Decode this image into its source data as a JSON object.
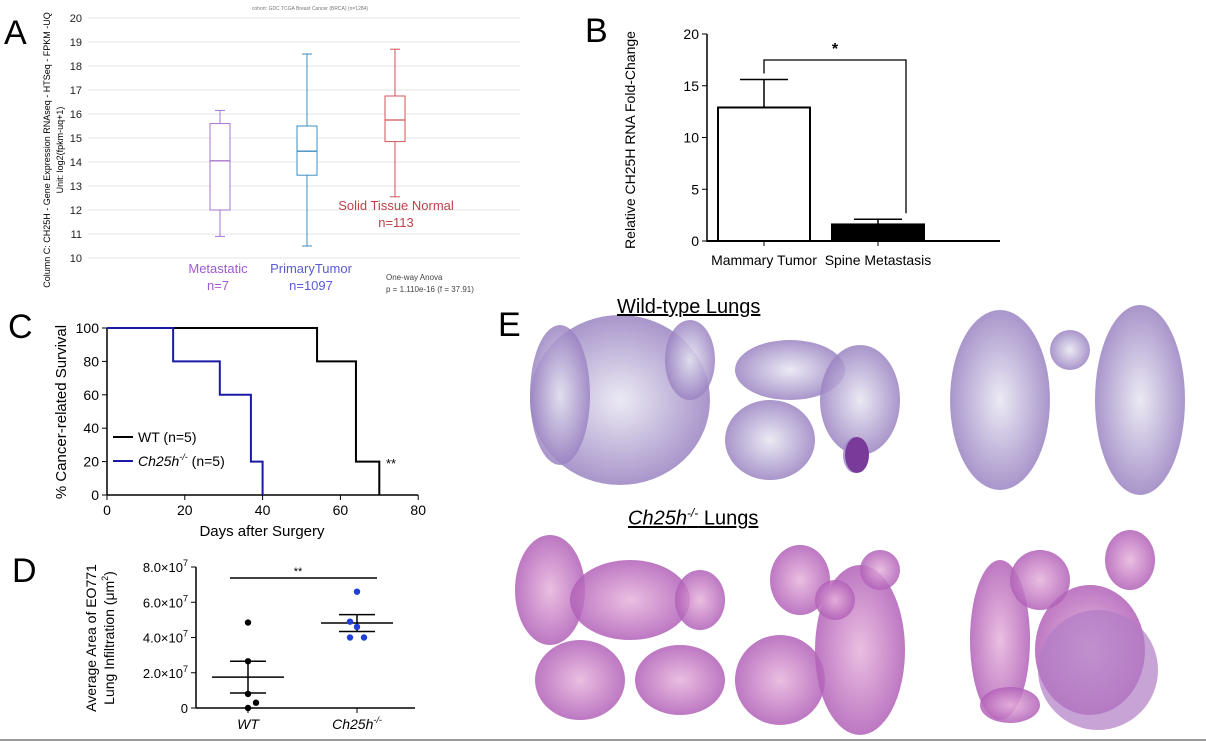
{
  "panels": {
    "A": "A",
    "B": "B",
    "C": "C",
    "D": "D",
    "E": "E"
  },
  "colors": {
    "metastatic": "#a774cf",
    "primary": "#3e8ec0",
    "normal": "#d0535b",
    "ko": "#1a1aa6",
    "wt": "#000000",
    "dots_ko": "#1f3fd8"
  },
  "chart_data": [
    {
      "panel": "A",
      "type": "box",
      "title": "cohort: GDC TCGA Breast Cancer (BRCA) (n=1284)",
      "ylabel": "Column C: CH25H - Gene Expression RNAseq - HTSeq - FPKM -UQ",
      "ylabel2": "Unit: log2(fpkm-uq+1)",
      "ylim": [
        10,
        20
      ],
      "yticks": [
        "10",
        "11",
        "12",
        "13",
        "14",
        "15",
        "16",
        "17",
        "18",
        "19",
        "20"
      ],
      "grid": true,
      "series": [
        {
          "name": "Metastatic",
          "n": "n=7",
          "min": 10.9,
          "q1": 12.0,
          "median": 14.05,
          "q3": 15.6,
          "max": 16.15
        },
        {
          "name": "PrimaryTumor",
          "n": "n=1097",
          "min": 10.5,
          "q1": 13.45,
          "median": 14.45,
          "q3": 15.5,
          "max": 18.5
        },
        {
          "name": "Solid Tissue Normal",
          "n": "n=113",
          "min": 12.55,
          "q1": 14.85,
          "median": 15.75,
          "q3": 16.75,
          "max": 18.7
        }
      ],
      "annotation": [
        "One-way Anova",
        "p = 1.110e-16 (f = 37.91)"
      ]
    },
    {
      "panel": "B",
      "type": "bar",
      "ylabel": "Relative CH25H RNA Fold-Change",
      "ylim": [
        0,
        20
      ],
      "yticks": [
        "0",
        "5",
        "10",
        "15",
        "20"
      ],
      "categories": [
        "Mammary Tumor",
        "Spine Metastasis"
      ],
      "values": [
        12.9,
        1.6
      ],
      "errors": [
        2.7,
        0.5
      ],
      "fills": [
        "#ffffff",
        "#000000"
      ],
      "significance": "*"
    },
    {
      "panel": "C",
      "type": "line",
      "step": true,
      "xlabel": "Days after Surgery",
      "ylabel": "% Cancer-related Survival",
      "xlim": [
        0,
        80
      ],
      "ylim": [
        0,
        100
      ],
      "xticks": [
        "0",
        "20",
        "40",
        "60",
        "80"
      ],
      "yticks": [
        "0",
        "20",
        "40",
        "60",
        "80",
        "100"
      ],
      "legend": "center-left",
      "series": [
        {
          "name": "WT (n=5)",
          "x": [
            0,
            54,
            64,
            70
          ],
          "y": [
            100,
            80,
            20,
            0
          ]
        },
        {
          "name_prefix": "Ch25h",
          "name_sup": "-/-",
          "name_suffix": " (n=5)",
          "x": [
            0,
            17,
            29,
            37,
            40
          ],
          "y": [
            100,
            80,
            60,
            20,
            0
          ]
        }
      ],
      "significance": "**"
    },
    {
      "panel": "D",
      "type": "scatter",
      "ylabel": "Average Area of EO771",
      "ylabel2_prefix": "Lung Infiltration (μm",
      "ylabel2_sup": "2",
      "ylabel2_suffix": ")",
      "ylim": [
        0,
        80000000
      ],
      "yticks": [
        "0",
        "2.0×10",
        "4.0×10",
        "6.0×10",
        "8.0×10"
      ],
      "ytick_exp": "7",
      "categories": [
        "WT",
        "Ch25h"
      ],
      "category_sup": [
        "",
        "-/-"
      ],
      "series": [
        {
          "name": "WT",
          "values": [
            48500000,
            26500000,
            8000000,
            3000000,
            0
          ],
          "mean": 17500000,
          "sem": 9000000
        },
        {
          "name": "Ch25h-/-",
          "values": [
            66000000,
            49000000,
            46000000,
            40000000,
            40000000
          ],
          "mean": 48200000,
          "sem": 4800000
        }
      ],
      "significance": "**"
    }
  ],
  "panel_e": {
    "row1_title": "Wild-type Lungs",
    "row2_title_prefix": "Ch25h",
    "row2_title_sup": "-/-",
    "row2_title_suffix": " Lungs"
  }
}
